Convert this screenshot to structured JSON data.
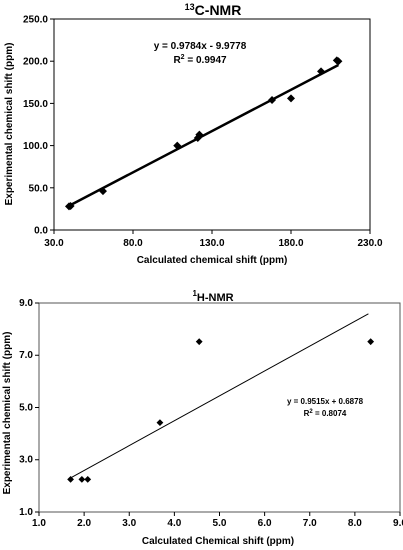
{
  "chart_data": [
    {
      "type": "scatter",
      "title_iso": "13",
      "title_text": "C-NMR",
      "xlabel": "Calculated chemical shift (ppm)",
      "ylabel": "Experimental chemical shift (ppm)",
      "xlim": [
        30,
        230
      ],
      "ylim": [
        0,
        250
      ],
      "x_ticks": [
        "30.0",
        "80.0",
        "130.0",
        "180.0",
        "230.0"
      ],
      "y_ticks": [
        "0.0",
        "50.0",
        "100.0",
        "150.0",
        "200.0",
        "250.0"
      ],
      "series": [
        {
          "points": [
            [
              39.5,
              28
            ],
            [
              40.5,
              28.5
            ],
            [
              61,
              46
            ],
            [
              108,
              100
            ],
            [
              121,
              109
            ],
            [
              122,
              113
            ],
            [
              168,
              154
            ],
            [
              180,
              156
            ],
            [
              199,
              188
            ],
            [
              209,
              201
            ],
            [
              210,
              200
            ]
          ]
        }
      ],
      "trendline": {
        "slope": 0.9784,
        "intercept": -9.9778,
        "x_range": [
          39,
          210
        ]
      },
      "equation": "y = 0.9784x - 9.9778",
      "r2_label": "R",
      "r2_sup": "2",
      "r2_value": " = 0.9947",
      "grid": false,
      "marker_color": "#000000"
    },
    {
      "type": "scatter",
      "title_iso": "1",
      "title_text": "H-NMR",
      "xlabel": "Calculated Chemical shift (ppm)",
      "ylabel": "Experimental chemical shift (ppm)",
      "xlim": [
        1,
        9
      ],
      "ylim": [
        1,
        9
      ],
      "x_ticks": [
        "1.0",
        "2.0",
        "3.0",
        "4.0",
        "5.0",
        "6.0",
        "7.0",
        "8.0",
        "9.0"
      ],
      "y_ticks": [
        "1.0",
        "3.0",
        "5.0",
        "7.0",
        "9.0"
      ],
      "series": [
        {
          "points": [
            [
              1.7,
              2.25
            ],
            [
              1.95,
              2.25
            ],
            [
              2.08,
              2.25
            ],
            [
              3.68,
              4.42
            ],
            [
              4.55,
              7.52
            ],
            [
              8.35,
              7.52
            ]
          ]
        }
      ],
      "trendline": {
        "slope": 0.9515,
        "intercept": 0.6878,
        "x_range": [
          1.7,
          8.3
        ]
      },
      "equation": "y = 0.9515x + 0.6878",
      "r2_label": "R",
      "r2_sup": "2",
      "r2_value": " = 0.8074",
      "grid": false,
      "marker_color": "#000000"
    }
  ]
}
